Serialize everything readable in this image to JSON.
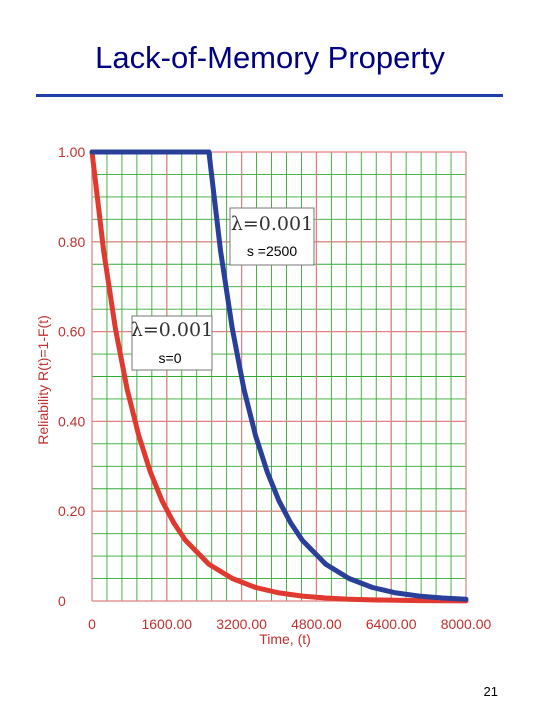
{
  "slide": {
    "title": "Lack-of-Memory Property",
    "page_number": "21"
  },
  "colors": {
    "title": "#000080",
    "rule": "#1f3fa8",
    "axis_text": "#c03030",
    "major_grid": "#e08080",
    "minor_grid": "#33aa33",
    "series_red": "#e03a30",
    "series_blue": "#2a3f9a"
  },
  "chart_data": {
    "type": "line",
    "title": "",
    "xlabel": "Time, (t)",
    "ylabel": "Reliability R(t)=1-F(t)",
    "xlim": [
      0,
      8000
    ],
    "ylim": [
      0,
      1.0
    ],
    "x_ticks": [
      0,
      1600,
      3200,
      4800,
      6400,
      8000
    ],
    "x_tick_labels": [
      "0",
      "1600.00",
      "3200.00",
      "4800.00",
      "6400.00",
      "8000.00"
    ],
    "y_ticks": [
      0,
      0.2,
      0.4,
      0.6,
      0.8,
      1.0
    ],
    "y_tick_labels": [
      "0",
      "0.20",
      "0.40",
      "0.60",
      "0.80",
      "1.00"
    ],
    "grid": true,
    "series": [
      {
        "color": "#e03a30",
        "x": [
          0,
          250,
          500,
          750,
          1000,
          1250,
          1500,
          1750,
          2000,
          2500,
          3000,
          3500,
          4000,
          4500,
          5000,
          5500,
          6000,
          6500,
          7000,
          7500,
          8000
        ],
        "y": [
          1.0,
          0.779,
          0.607,
          0.472,
          0.368,
          0.287,
          0.223,
          0.174,
          0.135,
          0.082,
          0.05,
          0.03,
          0.018,
          0.011,
          0.0067,
          0.0041,
          0.0025,
          0.0015,
          0.0009,
          0.0006,
          0.0003
        ]
      },
      {
        "color": "#2a3f9a",
        "x": [
          0,
          2500,
          2750,
          3000,
          3250,
          3500,
          3750,
          4000,
          4250,
          4500,
          5000,
          5500,
          6000,
          6500,
          7000,
          7500,
          8000
        ],
        "y": [
          1.0,
          1.0,
          0.779,
          0.607,
          0.472,
          0.368,
          0.287,
          0.223,
          0.174,
          0.135,
          0.082,
          0.05,
          0.03,
          0.018,
          0.011,
          0.0067,
          0.0041
        ]
      }
    ],
    "annotations": [
      {
        "lambda_text": "λ=0.001",
        "s_text": "s =2500"
      },
      {
        "lambda_text": "λ=0.001",
        "s_text": "s=0"
      }
    ]
  }
}
